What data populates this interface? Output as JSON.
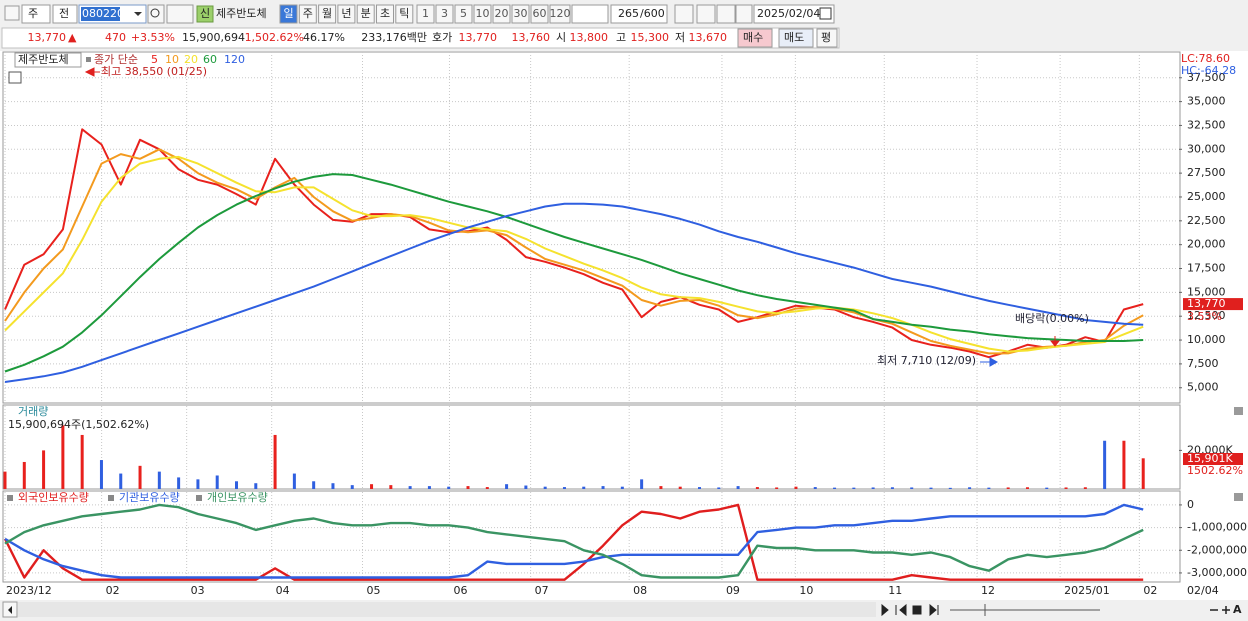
{
  "toolbar": {
    "period_type": "주",
    "mode": "전",
    "code": "080220",
    "badge": "신",
    "name": "제주반도체",
    "periods": [
      "일",
      "주",
      "월",
      "년",
      "분",
      "초",
      "틱"
    ],
    "intervals": [
      "1",
      "3",
      "5",
      "10",
      "20",
      "30",
      "60",
      "120"
    ],
    "count": "265",
    "max_count": "/600",
    "date": "2025/02/04"
  },
  "quote_bar": {
    "price": "13,770",
    "change_mark": "▲",
    "change": "470",
    "change_pct": "+3.53%",
    "volume": "15,900,694",
    "volume_pct": "1,502.62%",
    "ratio": "46.17%",
    "amount": "233,176백만",
    "ask_label": "호가",
    "ask": "13,770",
    "bid": "13,760",
    "open_label": "시",
    "open": "13,800",
    "high_label": "고",
    "high": "15,300",
    "low_label": "저",
    "low": "13,670",
    "buy": "매수",
    "sell": "매도",
    "avg": "평"
  },
  "controls": {
    "fit": "A"
  },
  "chart_data": [
    {
      "type": "line",
      "legend_title": "제주반도체",
      "legend_label": "종가 단순",
      "lc": "LC:78.60",
      "hc": "HC:-64.28",
      "high_note": "최고 38,550 (01/25)",
      "low_note": "최저 7,710 (12/09)",
      "dividend_note": "배당락(0.00%)",
      "last_price": {
        "value": 13770,
        "label": "13,770"
      },
      "last_change": "3.53%",
      "x_end_label": "02/04",
      "xlim": [
        0,
        60.7
      ],
      "xticks": [
        {
          "value": 0,
          "label": "2023/12"
        },
        {
          "value": 5.0,
          "label": "02"
        },
        {
          "value": 9.4,
          "label": "03"
        },
        {
          "value": 13.8,
          "label": "04"
        },
        {
          "value": 18.5,
          "label": "05"
        },
        {
          "value": 23.0,
          "label": "06"
        },
        {
          "value": 27.2,
          "label": "07"
        },
        {
          "value": 32.3,
          "label": "08"
        },
        {
          "value": 37.1,
          "label": "09"
        },
        {
          "value": 40.9,
          "label": "10"
        },
        {
          "value": 45.5,
          "label": "11"
        },
        {
          "value": 50.3,
          "label": "12"
        },
        {
          "value": 54.6,
          "label": "2025/01"
        },
        {
          "value": 58.7,
          "label": "02"
        }
      ],
      "ylim": [
        3400,
        40200
      ],
      "yticks": [
        {
          "value": 5000,
          "label": "5,000"
        },
        {
          "value": 7500,
          "label": "7,500"
        },
        {
          "value": 10000,
          "label": "10,000"
        },
        {
          "value": 12500,
          "label": "12,500"
        },
        {
          "value": 15000,
          "label": "15,000"
        },
        {
          "value": 17500,
          "label": "17,500"
        },
        {
          "value": 20000,
          "label": "20,000"
        },
        {
          "value": 22500,
          "label": "22,500"
        },
        {
          "value": 25000,
          "label": "25,000"
        },
        {
          "value": 27500,
          "label": "27,500"
        },
        {
          "value": 30000,
          "label": "30,000"
        },
        {
          "value": 32500,
          "label": "32,500"
        },
        {
          "value": 35000,
          "label": "35,000"
        },
        {
          "value": 37500,
          "label": "37,500"
        }
      ],
      "grid": true,
      "series": [
        {
          "name": "5",
          "color": "#e8211d",
          "values": [
            13200,
            17900,
            19000,
            21600,
            32100,
            30500,
            26300,
            31000,
            30000,
            27900,
            26800,
            26300,
            25300,
            24200,
            29000,
            26300,
            24200,
            22600,
            22400,
            23200,
            23200,
            22900,
            21600,
            21300,
            21400,
            21800,
            20500,
            18700,
            18200,
            17600,
            16900,
            16000,
            15300,
            12400,
            14000,
            14500,
            13700,
            13200,
            11900,
            12400,
            13000,
            13600,
            13400,
            13200,
            12400,
            11900,
            11300,
            10000,
            9500,
            9200,
            8800,
            8200,
            8800,
            9500,
            9200,
            9500,
            10300,
            9800,
            13200,
            13770
          ]
        },
        {
          "name": "10",
          "color": "#f39a1e",
          "values": [
            12000,
            15000,
            17500,
            19500,
            24000,
            28500,
            29500,
            29000,
            30000,
            29000,
            27500,
            26500,
            25800,
            24800,
            26000,
            27000,
            25000,
            23500,
            22500,
            22800,
            23200,
            23000,
            22300,
            21500,
            21300,
            21500,
            21000,
            19700,
            18500,
            17900,
            17300,
            16500,
            15700,
            14200,
            13600,
            14100,
            14200,
            13600,
            12600,
            12300,
            12700,
            13300,
            13500,
            13300,
            12900,
            12200,
            11700,
            10800,
            9900,
            9400,
            9000,
            8600,
            8600,
            9100,
            9300,
            9400,
            9800,
            10000,
            11500,
            12600
          ]
        },
        {
          "name": "20",
          "color": "#f5e22e",
          "values": [
            11000,
            13000,
            15000,
            17000,
            20500,
            24500,
            27000,
            28500,
            29000,
            29200,
            28500,
            27500,
            26500,
            25600,
            25500,
            26000,
            26000,
            24800,
            23600,
            23000,
            23000,
            23100,
            22800,
            22300,
            21800,
            21600,
            21400,
            20600,
            19600,
            18800,
            18000,
            17300,
            16500,
            15500,
            14800,
            14500,
            14400,
            14000,
            13500,
            13000,
            12800,
            13000,
            13300,
            13400,
            13200,
            12800,
            12300,
            11600,
            10800,
            10100,
            9600,
            9100,
            8800,
            8900,
            9200,
            9400,
            9600,
            9800,
            10600,
            11400
          ]
        },
        {
          "name": "60",
          "color": "#1d9a3c",
          "values": [
            6700,
            7400,
            8300,
            9300,
            10800,
            12600,
            14600,
            16600,
            18500,
            20200,
            21800,
            23100,
            24200,
            25100,
            25900,
            26600,
            27100,
            27400,
            27300,
            26800,
            26300,
            25700,
            25100,
            24500,
            24000,
            23500,
            22900,
            22200,
            21500,
            20800,
            20200,
            19600,
            19000,
            18400,
            17700,
            17000,
            16400,
            15800,
            15200,
            14700,
            14300,
            14000,
            13700,
            13400,
            13100,
            12200,
            11900,
            11600,
            11400,
            11100,
            10900,
            10600,
            10400,
            10200,
            10100,
            10000,
            9900,
            9900,
            9900,
            10000
          ]
        },
        {
          "name": "120",
          "color": "#2f5fe0",
          "values": [
            5600,
            5900,
            6200,
            6600,
            7200,
            7900,
            8600,
            9300,
            10000,
            10700,
            11400,
            12100,
            12800,
            13500,
            14200,
            14900,
            15600,
            16400,
            17200,
            18000,
            18800,
            19600,
            20400,
            21100,
            21800,
            22400,
            23000,
            23500,
            24000,
            24300,
            24300,
            24200,
            24000,
            23600,
            23200,
            22700,
            22100,
            21400,
            20800,
            20300,
            19700,
            19100,
            18600,
            18100,
            17600,
            17000,
            16400,
            16000,
            15600,
            15100,
            14600,
            14100,
            13700,
            13300,
            12900,
            12500,
            12100,
            11900,
            11700,
            11600
          ]
        }
      ]
    },
    {
      "type": "bar",
      "title": "거래량",
      "subtitle": "15,900,694주(1,502.62%)",
      "last_value_label": "15,901K",
      "last_pct": "1502.62%",
      "up_color": "#e8211d",
      "down_color": "#2f5fe0",
      "ylim": [
        0,
        43000
      ],
      "yticks": [
        {
          "value": 20000,
          "label": "20,000K"
        }
      ],
      "values": [
        9000,
        14000,
        20000,
        33000,
        28000,
        15000,
        8000,
        12000,
        9000,
        6000,
        5000,
        7000,
        4000,
        3000,
        28000,
        8000,
        4000,
        3000,
        2000,
        2500,
        2000,
        1500,
        1500,
        1200,
        1500,
        1000,
        2500,
        1800,
        1200,
        1000,
        1200,
        1500,
        1200,
        5000,
        1500,
        1200,
        1000,
        800,
        1500,
        1000,
        800,
        1200,
        1000,
        700,
        700,
        800,
        900,
        800,
        700,
        600,
        900,
        700,
        800,
        900,
        700,
        800,
        900,
        25000,
        25000,
        15901
      ]
    },
    {
      "type": "line",
      "ylim": [
        -3400000,
        570000
      ],
      "yticks": [
        0,
        {
          "value": -1000000,
          "label": "-1,000,000"
        },
        {
          "value": -2000000,
          "label": "-2,000,000"
        },
        {
          "value": -3000000,
          "label": "-3,000,000"
        }
      ],
      "series": [
        {
          "name": "외국인보유수량",
          "color": "#e01e1e",
          "values": [
            -1500000,
            -3200000,
            -2000000,
            -2800000,
            -3300000,
            -3300000,
            -3300000,
            -3300000,
            -3300000,
            -3300000,
            -3300000,
            -3300000,
            -3300000,
            -3300000,
            -2800000,
            -3300000,
            -3300000,
            -3300000,
            -3300000,
            -3300000,
            -3300000,
            -3300000,
            -3300000,
            -3300000,
            -3300000,
            -3300000,
            -3300000,
            -3300000,
            -3300000,
            -3300000,
            -2600000,
            -1800000,
            -900000,
            -300000,
            -400000,
            -600000,
            -300000,
            -200000,
            0,
            -3300000,
            -3300000,
            -3300000,
            -3300000,
            -3300000,
            -3300000,
            -3300000,
            -3300000,
            -3100000,
            -3200000,
            -3300000,
            -3300000,
            -3300000,
            -3300000,
            -3300000,
            -3300000,
            -3300000,
            -3300000,
            -3300000,
            -3300000,
            -3300000
          ]
        },
        {
          "name": "기관보유수량",
          "color": "#2f5fe0",
          "values": [
            -1500000,
            -2000000,
            -2400000,
            -2700000,
            -2900000,
            -3100000,
            -3200000,
            -3200000,
            -3200000,
            -3200000,
            -3200000,
            -3200000,
            -3200000,
            -3200000,
            -3200000,
            -3200000,
            -3200000,
            -3200000,
            -3200000,
            -3200000,
            -3200000,
            -3200000,
            -3200000,
            -3200000,
            -3100000,
            -2500000,
            -2600000,
            -2600000,
            -2600000,
            -2600000,
            -2500000,
            -2300000,
            -2200000,
            -2200000,
            -2200000,
            -2200000,
            -2200000,
            -2200000,
            -2200000,
            -1200000,
            -1100000,
            -1000000,
            -1000000,
            -900000,
            -900000,
            -800000,
            -700000,
            -700000,
            -600000,
            -500000,
            -500000,
            -500000,
            -500000,
            -500000,
            -500000,
            -500000,
            -500000,
            -400000,
            0,
            -200000
          ]
        },
        {
          "name": "개인보유수량",
          "color": "#3a9463",
          "values": [
            -1700000,
            -1200000,
            -900000,
            -700000,
            -500000,
            -400000,
            -300000,
            -200000,
            0,
            -100000,
            -400000,
            -600000,
            -800000,
            -1100000,
            -900000,
            -700000,
            -600000,
            -800000,
            -900000,
            -900000,
            -800000,
            -800000,
            -900000,
            -900000,
            -1000000,
            -1200000,
            -1300000,
            -1400000,
            -1500000,
            -1600000,
            -2000000,
            -2200000,
            -2600000,
            -3100000,
            -3200000,
            -3200000,
            -3200000,
            -3200000,
            -3100000,
            -1800000,
            -1900000,
            -1900000,
            -2000000,
            -2000000,
            -2000000,
            -2100000,
            -2100000,
            -2200000,
            -2100000,
            -2300000,
            -2700000,
            -2900000,
            -2400000,
            -2200000,
            -2300000,
            -2200000,
            -2100000,
            -1900000,
            -1500000,
            -1100000
          ]
        }
      ]
    }
  ]
}
